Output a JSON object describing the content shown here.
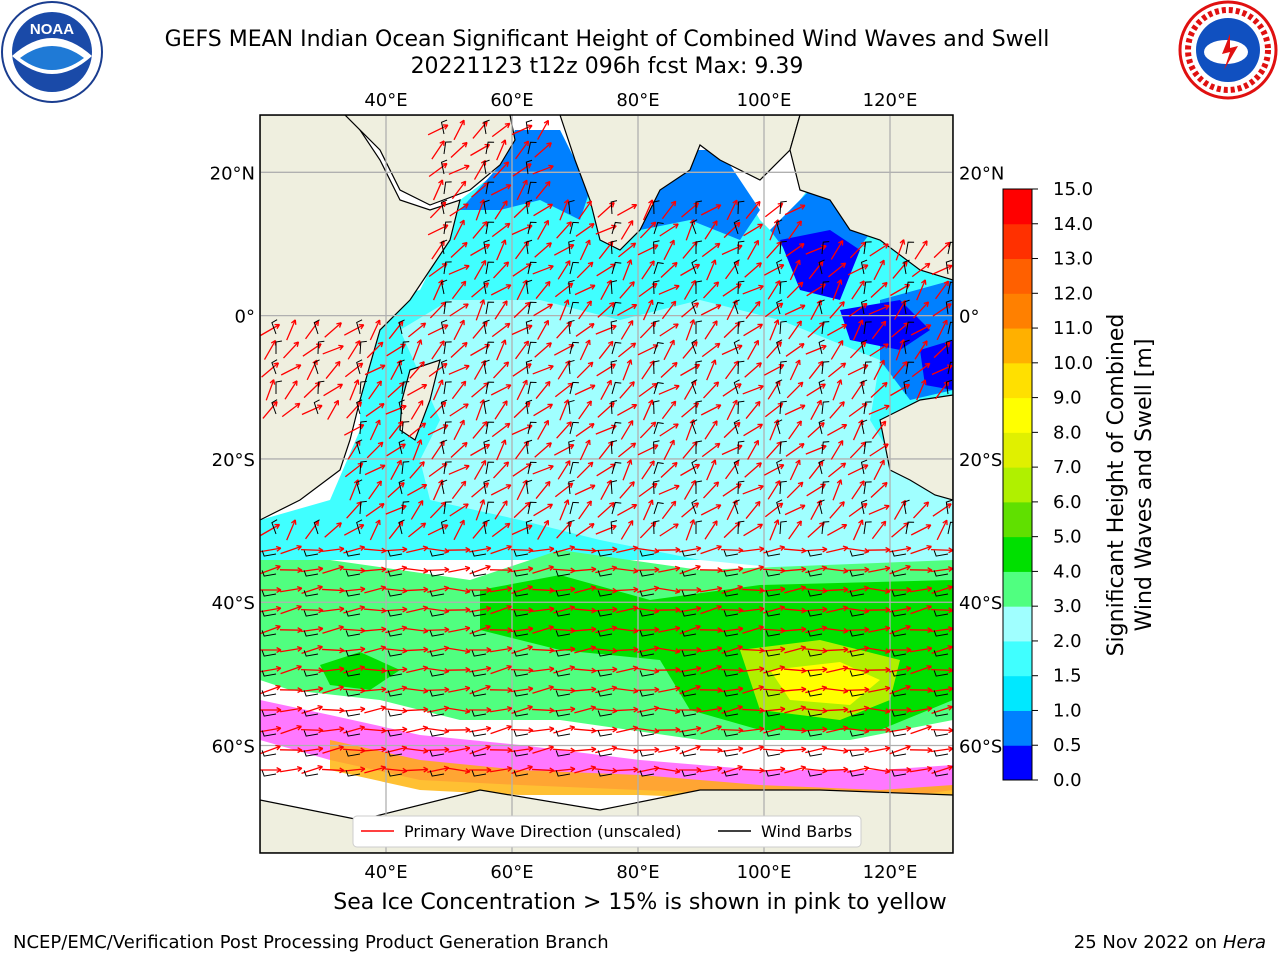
{
  "title_line1": "GEFS MEAN Indian Ocean Significant Height of Combined Wind Waves and Swell",
  "title_line2": "20221123 t12z 096h fcst   Max: 9.39",
  "logos": {
    "left": "noaa-logo",
    "right": "nws-logo",
    "left_text": "NOAA",
    "right_text": "NATIONAL WEATHER SERVICE"
  },
  "map": {
    "lon_labels": [
      "40°E",
      "60°E",
      "80°E",
      "100°E",
      "120°E"
    ],
    "lat_labels_left": [
      "20°N",
      "0°",
      "20°S",
      "40°S",
      "60°S"
    ],
    "lat_labels_right": [
      "20°N",
      "0°",
      "20°S",
      "40°S",
      "60°S"
    ],
    "lon_values": [
      40,
      60,
      80,
      100,
      120
    ],
    "lat_values": [
      20,
      0,
      -20,
      -40,
      -60
    ],
    "extent": {
      "lon_min": 20,
      "lon_max": 130,
      "lat_min": -75,
      "lat_max": 28
    },
    "land_color": "#efefdf",
    "grid": true,
    "legend": {
      "wave_label": "Primary Wave Direction (unscaled)",
      "wind_label": "Wind Barbs",
      "wave_color": "#ff0000",
      "wind_color": "#000000",
      "placement": "bottom-center"
    }
  },
  "colorbar": {
    "label_line1": "Significant Height of Combined",
    "label_line2": "Wind Waves and Swell [m]",
    "ticks": [
      "0.0",
      "0.5",
      "1.0",
      "1.5",
      "2.0",
      "3.0",
      "4.0",
      "5.0",
      "6.0",
      "7.0",
      "8.0",
      "9.0",
      "10.0",
      "11.0",
      "12.0",
      "13.0",
      "14.0",
      "15.0"
    ],
    "colors": [
      "#0000ff",
      "#0080ff",
      "#00e8ff",
      "#40ffff",
      "#a0ffff",
      "#50ff80",
      "#00e000",
      "#60e000",
      "#b0f000",
      "#e0f000",
      "#ffff00",
      "#ffe000",
      "#ffb000",
      "#ff8000",
      "#ff6000",
      "#ff3000",
      "#ff0000"
    ]
  },
  "footer_note": "Sea Ice Concentration > 15% is shown in pink to yellow",
  "credit": "NCEP/EMC/Verification Post Processing Product Generation Branch",
  "date_prefix": "25 Nov 2022 on",
  "date_host": "Hera"
}
